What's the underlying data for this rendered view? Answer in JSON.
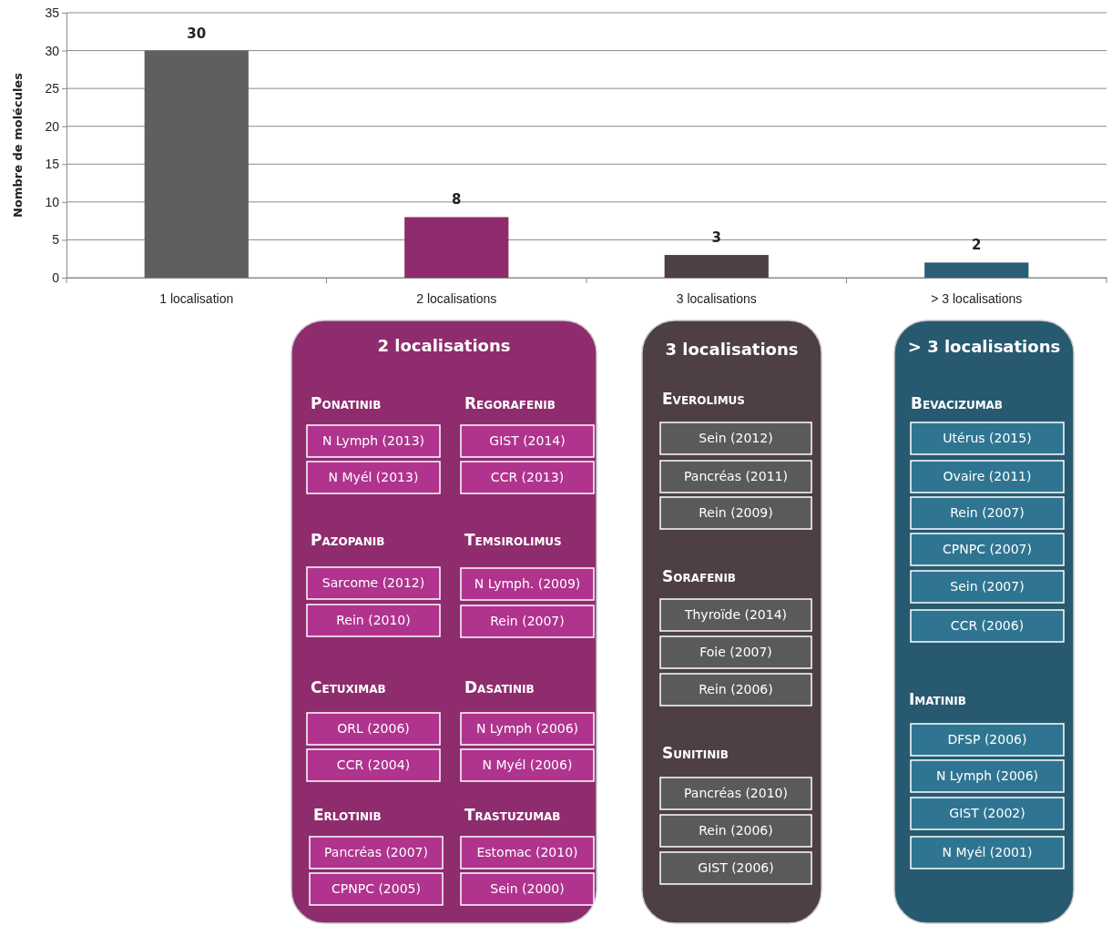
{
  "chart_data": [
    {
      "type": "bar",
      "ylabel": "Nombre de molécules",
      "categories": [
        "1 localisation",
        "2 localisations",
        "3 localisations",
        "> 3 localisations"
      ],
      "values": [
        30,
        8,
        3,
        2
      ],
      "colors": [
        "#5f5f5f",
        "#8e2c6e",
        "#4d3f44",
        "#2b5f76"
      ],
      "ylim": [
        0,
        35
      ],
      "yticks": [
        0,
        5,
        10,
        15,
        20,
        25,
        30,
        35
      ],
      "grid": "y",
      "data_labels": true
    },
    {
      "type": "other",
      "title": "2 localisations",
      "categories": [
        "Ponatinib",
        "Regorafenib",
        "Pazopanib",
        "Temsirolimus",
        "Cetuximab",
        "Dasatinib",
        "Erlotinib",
        "Trastuzumab"
      ],
      "annotations": [
        "N Lymph (2013)",
        "N Myél (2013)",
        "GIST (2014)",
        "CCR (2013)",
        "Sarcome (2012)",
        "Rein (2010)",
        "N Lymph. (2009)",
        "Rein (2007)",
        "ORL (2006)",
        "CCR (2004)",
        "N Lymph (2006)",
        "N Myél (2006)",
        "Pancréas (2007)",
        "CPNPC (2005)",
        "Estomac (2010)",
        "Sein (2000)"
      ]
    },
    {
      "type": "other",
      "title": "3 localisations",
      "categories": [
        "Everolimus",
        "Sorafenib",
        "Sunitinib"
      ],
      "annotations": [
        "Sein (2012)",
        "Pancréas (2011)",
        "Rein (2009)",
        "Thyroïde (2014)",
        "Foie (2007)",
        "Rein (2006)",
        "Pancréas (2010)",
        "Rein (2006)",
        "GIST (2006)"
      ]
    },
    {
      "type": "other",
      "title": "> 3 localisations",
      "categories": [
        "Bevacizumab",
        "Imatinib"
      ],
      "annotations": [
        "Utérus (2015)",
        "Ovaire (2011)",
        "Rein (2007)",
        "CPNPC (2007)",
        "Sein (2007)",
        "CCR (2006)",
        "DFSP (2006)",
        "N Lymph (2006)",
        "GIST (2002)",
        "N Myél (2001)"
      ]
    }
  ]
}
